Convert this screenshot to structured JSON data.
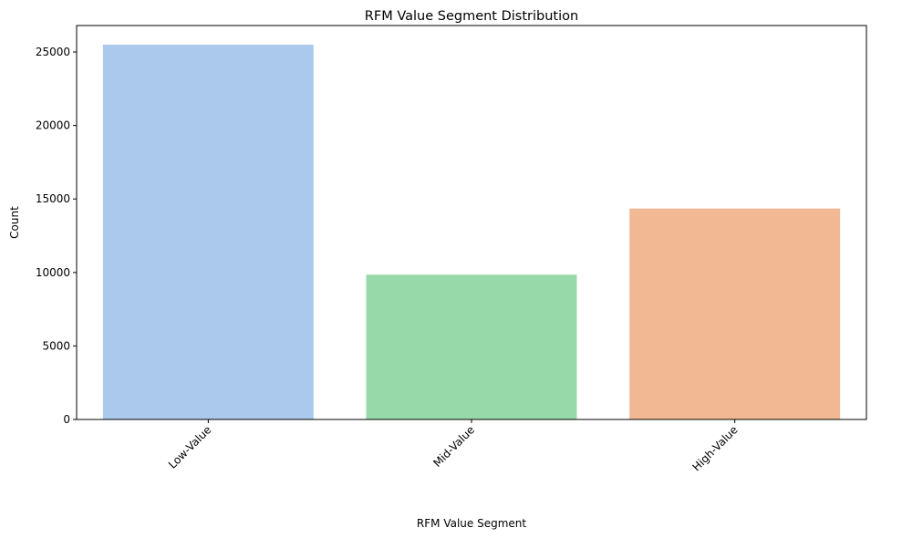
{
  "chart_data": {
    "type": "bar",
    "title": "RFM Value Segment Distribution",
    "xlabel": "RFM Value Segment",
    "ylabel": "Count",
    "categories": [
      "Low-Value",
      "Mid-Value",
      "High-Value"
    ],
    "values": [
      25500,
      9850,
      14350
    ],
    "colors": [
      "#abc9ed",
      "#98d9a9",
      "#f0b893"
    ],
    "ylim": [
      0,
      26800
    ],
    "yticks": [
      0,
      5000,
      10000,
      15000,
      20000,
      25000
    ],
    "ytick_labels": [
      "0",
      "5000",
      "10000",
      "15000",
      "20000",
      "25000"
    ],
    "xtick_rotation": 45,
    "grid": false,
    "legend": "none"
  }
}
